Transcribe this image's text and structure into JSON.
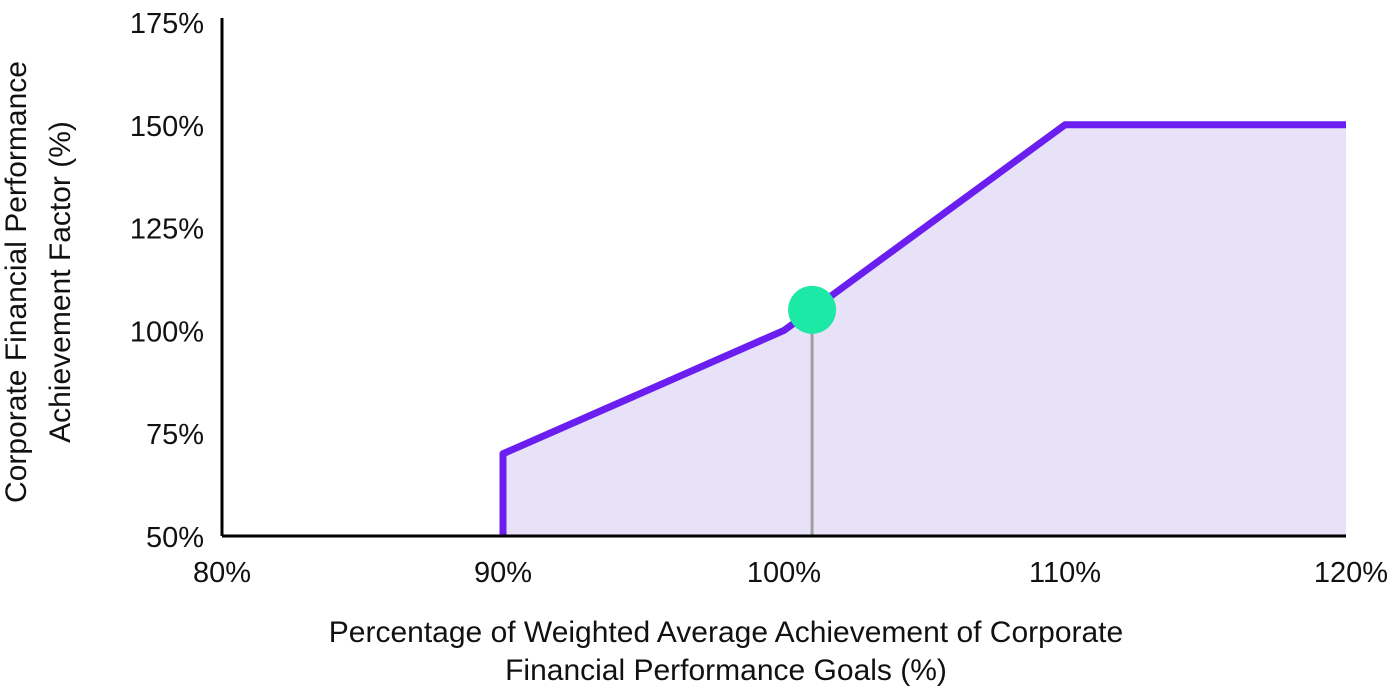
{
  "chart_data": {
    "type": "area",
    "title": "",
    "xlabel_lines": [
      "Percentage of Weighted Average Achievement of Corporate",
      "Financial Performance Goals (%)"
    ],
    "ylabel_lines": [
      "Corporate Financial Performance",
      "Achievement Factor (%)"
    ],
    "xlim": [
      80,
      120
    ],
    "ylim": [
      50,
      175
    ],
    "x_ticks": [
      80,
      90,
      100,
      110,
      120
    ],
    "x_tick_labels": [
      "80%",
      "90%",
      "100%",
      "110%",
      "120%"
    ],
    "y_ticks": [
      50,
      75,
      100,
      125,
      150,
      175
    ],
    "y_tick_labels": [
      "50%",
      "75%",
      "100%",
      "125%",
      "150%",
      "175%"
    ],
    "series": [
      {
        "x": [
          90,
          90,
          100,
          110,
          120
        ],
        "y": [
          50,
          70,
          100,
          150,
          150
        ]
      }
    ],
    "highlight_point": {
      "x": 101,
      "y": 105
    },
    "grid": false,
    "colors": {
      "line": "#6a1ef0",
      "fill": "#e8e2f9",
      "point": "#1de9a6",
      "drop_line": "#9e9e9e",
      "axis": "#000000"
    }
  }
}
